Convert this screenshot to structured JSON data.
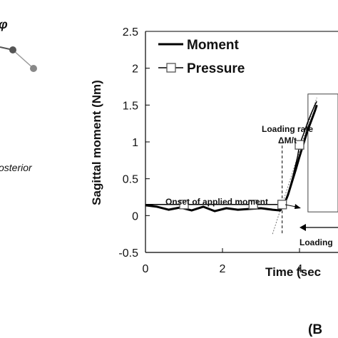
{
  "left_fragment": {
    "symbol": "φ",
    "word": "osterior",
    "colors": {
      "dark": "#555555",
      "light": "#999999"
    }
  },
  "panel_label": "(B",
  "chart_data": {
    "type": "line",
    "title": "",
    "xlabel": "Time (sec",
    "ylabel": "Sagittal moment (Nm)",
    "xlim": [
      0,
      5.0
    ],
    "ylim": [
      -0.5,
      2.5
    ],
    "x_ticks": [
      0,
      2,
      4
    ],
    "x_tick_labels": [
      "0",
      "2",
      "4"
    ],
    "y_ticks": [
      -0.5,
      0,
      0.5,
      1,
      1.5,
      2,
      2.5
    ],
    "y_tick_labels": [
      "-0.5",
      "0",
      "0.5",
      "1",
      "1.5",
      "2",
      "2.5"
    ],
    "grid": false,
    "legend": {
      "position": "top-left",
      "entries": [
        {
          "label": "Moment",
          "style": "line"
        },
        {
          "label": "Pressure",
          "style": "line-square"
        }
      ]
    },
    "series": [
      {
        "name": "Moment",
        "color": "#000000",
        "x": [
          0,
          0.3,
          0.6,
          0.9,
          1.2,
          1.5,
          1.8,
          2.1,
          2.4,
          2.7,
          3.0,
          3.3,
          3.5,
          3.6,
          3.7,
          3.8,
          3.9,
          4.0,
          4.1,
          4.2,
          4.3,
          4.4,
          4.45
        ],
        "y": [
          0.14,
          0.12,
          0.08,
          0.11,
          0.07,
          0.12,
          0.06,
          0.1,
          0.08,
          0.09,
          0.1,
          0.08,
          0.07,
          0.15,
          0.28,
          0.45,
          0.62,
          0.8,
          0.97,
          1.14,
          1.28,
          1.42,
          1.5
        ]
      },
      {
        "name": "Pressure",
        "color": "#000000",
        "x": [
          0,
          1.0,
          2.8,
          3.4,
          3.55,
          3.65,
          3.75,
          3.85,
          3.95,
          4.0,
          4.1,
          4.2,
          4.3,
          4.4,
          4.45
        ],
        "y": [
          0.15,
          0.15,
          0.15,
          0.15,
          0.15,
          0.22,
          0.38,
          0.58,
          0.8,
          0.96,
          1.1,
          1.25,
          1.38,
          1.5,
          1.55
        ],
        "marker_x": [
          1.0,
          2.8,
          3.55,
          4.0
        ],
        "marker_y": [
          0.15,
          0.15,
          0.15,
          0.96
        ]
      }
    ],
    "annotations": [
      {
        "text": "Loading rate",
        "target_x": 3.55
      },
      {
        "text": "ΔM/t",
        "target_x": 3.55
      },
      {
        "text": "Onset of applied moment",
        "target_x": 3.55,
        "target_y": 0.12
      },
      {
        "text": "Loading",
        "target_x": 3.55
      }
    ]
  }
}
